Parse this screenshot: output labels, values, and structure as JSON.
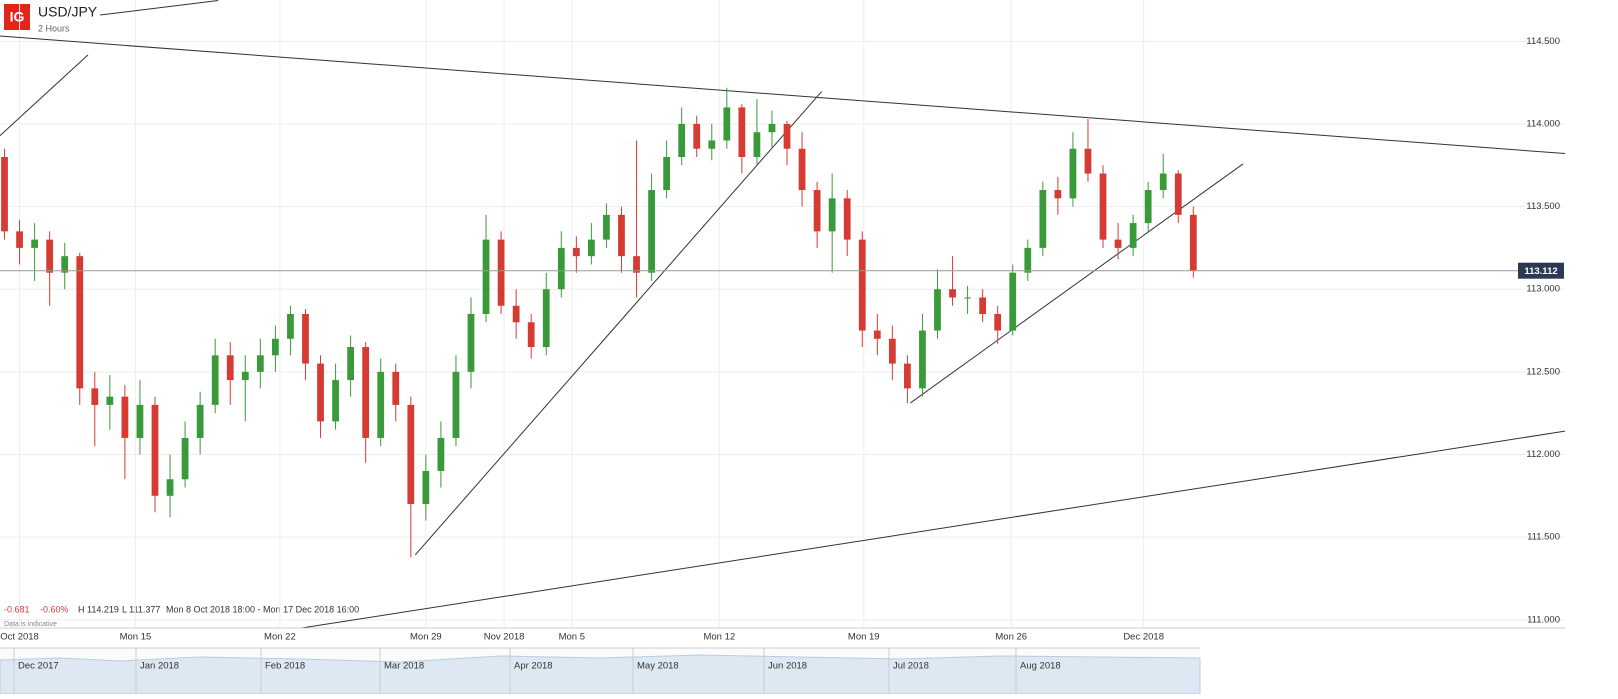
{
  "chart_data": {
    "type": "candlestick",
    "logo": "IG",
    "title": "USD/JPY",
    "subtitle": "2 Hours",
    "info": {
      "change": "-0.681",
      "change_pct": "-0.60%",
      "high": "H 114.219",
      "low": "L 111.377",
      "period": "Mon 8 Oct 2018 18:00 - Mon 17 Dec 2018 16:00",
      "note": "Data is indicative"
    },
    "up_color": "#3a9a3a",
    "down_color": "#d63b33",
    "grid": true,
    "xlim": [
      -0.3,
      103.7
    ],
    "ylim": [
      110.95,
      114.75
    ],
    "yticks": [
      {
        "value": 111.0,
        "label": "111.000"
      },
      {
        "value": 111.5,
        "label": "111.500"
      },
      {
        "value": 112.0,
        "label": "112.000"
      },
      {
        "value": 112.5,
        "label": "112.500"
      },
      {
        "value": 113.0,
        "label": "113.000"
      },
      {
        "value": 113.5,
        "label": "113.500"
      },
      {
        "value": 114.0,
        "label": "114.000"
      },
      {
        "value": 114.5,
        "label": "114.500"
      }
    ],
    "xticks": [
      {
        "value": 1,
        "label": "Oct 2018"
      },
      {
        "value": 8.7,
        "label": "Mon 15"
      },
      {
        "value": 18.3,
        "label": "Mon 22"
      },
      {
        "value": 28,
        "label": "Mon 29"
      },
      {
        "value": 33.2,
        "label": "Nov 2018"
      },
      {
        "value": 37.7,
        "label": "Mon 5"
      },
      {
        "value": 47.5,
        "label": "Mon 12"
      },
      {
        "value": 57.1,
        "label": "Mon 19"
      },
      {
        "value": 66.9,
        "label": "Mon 26"
      },
      {
        "value": 75.7,
        "label": "Dec 2018"
      }
    ],
    "last_price": {
      "value": 113.112,
      "label": "113.112",
      "color": "#2b3a52"
    },
    "ohlc": [
      [
        113.8,
        113.85,
        113.3,
        113.35
      ],
      [
        113.35,
        113.42,
        113.15,
        113.25
      ],
      [
        113.25,
        113.4,
        113.05,
        113.3
      ],
      [
        113.3,
        113.35,
        112.9,
        113.1
      ],
      [
        113.1,
        113.28,
        113.0,
        113.2
      ],
      [
        113.2,
        113.22,
        112.3,
        112.4
      ],
      [
        112.4,
        112.5,
        112.05,
        112.3
      ],
      [
        112.3,
        112.48,
        112.15,
        112.35
      ],
      [
        112.35,
        112.42,
        111.85,
        112.1
      ],
      [
        112.1,
        112.45,
        112.0,
        112.3
      ],
      [
        112.3,
        112.35,
        111.65,
        111.75
      ],
      [
        111.75,
        112.0,
        111.62,
        111.85
      ],
      [
        111.85,
        112.2,
        111.8,
        112.1
      ],
      [
        112.1,
        112.38,
        112.0,
        112.3
      ],
      [
        112.3,
        112.7,
        112.25,
        112.6
      ],
      [
        112.6,
        112.68,
        112.3,
        112.45
      ],
      [
        112.45,
        112.6,
        112.2,
        112.5
      ],
      [
        112.5,
        112.7,
        112.4,
        112.6
      ],
      [
        112.6,
        112.78,
        112.5,
        112.7
      ],
      [
        112.7,
        112.9,
        112.6,
        112.85
      ],
      [
        112.85,
        112.88,
        112.45,
        112.55
      ],
      [
        112.55,
        112.6,
        112.1,
        112.2
      ],
      [
        112.2,
        112.55,
        112.15,
        112.45
      ],
      [
        112.45,
        112.72,
        112.35,
        112.65
      ],
      [
        112.65,
        112.68,
        111.95,
        112.1
      ],
      [
        112.1,
        112.58,
        112.05,
        112.5
      ],
      [
        112.5,
        112.55,
        112.2,
        112.3
      ],
      [
        112.3,
        112.35,
        111.377,
        111.7
      ],
      [
        111.7,
        112.0,
        111.6,
        111.9
      ],
      [
        111.9,
        112.2,
        111.8,
        112.1
      ],
      [
        112.1,
        112.6,
        112.05,
        112.5
      ],
      [
        112.5,
        112.95,
        112.4,
        112.85
      ],
      [
        112.85,
        113.45,
        112.8,
        113.3
      ],
      [
        113.3,
        113.35,
        112.85,
        112.9
      ],
      [
        112.9,
        113.0,
        112.7,
        112.8
      ],
      [
        112.8,
        112.85,
        112.58,
        112.65
      ],
      [
        112.65,
        113.1,
        112.6,
        113.0
      ],
      [
        113.0,
        113.35,
        112.95,
        113.25
      ],
      [
        113.25,
        113.32,
        113.1,
        113.2
      ],
      [
        113.2,
        113.4,
        113.15,
        113.3
      ],
      [
        113.3,
        113.52,
        113.25,
        113.45
      ],
      [
        113.45,
        113.5,
        113.1,
        113.2
      ],
      [
        113.2,
        113.9,
        112.95,
        113.1
      ],
      [
        113.1,
        113.7,
        113.05,
        113.6
      ],
      [
        113.6,
        113.9,
        113.55,
        113.8
      ],
      [
        113.8,
        114.1,
        113.75,
        114.0
      ],
      [
        114.0,
        114.05,
        113.8,
        113.85
      ],
      [
        113.85,
        114.0,
        113.78,
        113.9
      ],
      [
        113.9,
        114.219,
        113.85,
        114.1
      ],
      [
        114.1,
        114.12,
        113.7,
        113.8
      ],
      [
        113.8,
        114.15,
        113.75,
        113.95
      ],
      [
        113.95,
        114.08,
        113.85,
        114.0
      ],
      [
        114.0,
        114.02,
        113.75,
        113.85
      ],
      [
        113.85,
        113.95,
        113.5,
        113.6
      ],
      [
        113.6,
        113.65,
        113.25,
        113.35
      ],
      [
        113.35,
        113.7,
        113.1,
        113.55
      ],
      [
        113.55,
        113.6,
        113.2,
        113.3
      ],
      [
        113.3,
        113.35,
        112.65,
        112.75
      ],
      [
        112.75,
        112.85,
        112.6,
        112.7
      ],
      [
        112.7,
        112.78,
        112.45,
        112.55
      ],
      [
        112.55,
        112.6,
        112.31,
        112.4
      ],
      [
        112.4,
        112.85,
        112.35,
        112.75
      ],
      [
        112.75,
        113.12,
        112.7,
        113.0
      ],
      [
        113.0,
        113.2,
        112.9,
        112.95
      ],
      [
        112.95,
        113.02,
        112.85,
        112.95
      ],
      [
        112.95,
        113.0,
        112.8,
        112.85
      ],
      [
        112.85,
        112.9,
        112.67,
        112.75
      ],
      [
        112.75,
        113.15,
        112.72,
        113.1
      ],
      [
        113.1,
        113.3,
        113.05,
        113.25
      ],
      [
        113.25,
        113.65,
        113.2,
        113.6
      ],
      [
        113.6,
        113.68,
        113.45,
        113.55
      ],
      [
        113.55,
        113.95,
        113.5,
        113.85
      ],
      [
        113.85,
        114.03,
        113.65,
        113.7
      ],
      [
        113.7,
        113.75,
        113.25,
        113.3
      ],
      [
        113.3,
        113.4,
        113.18,
        113.25
      ],
      [
        113.25,
        113.45,
        113.2,
        113.4
      ],
      [
        113.4,
        113.65,
        113.35,
        113.6
      ],
      [
        113.6,
        113.82,
        113.55,
        113.7
      ],
      [
        113.7,
        113.72,
        113.4,
        113.45
      ],
      [
        113.45,
        113.5,
        113.07,
        113.112
      ]
    ],
    "trendlines": [
      {
        "x": [
          -0.3,
          103.7
        ],
        "y": [
          114.532,
          113.821
        ]
      },
      {
        "x": [
          5.35,
          103.7
        ],
        "y": [
          110.746,
          112.141
        ]
      },
      {
        "x": [
          27.3,
          54.3
        ],
        "y": [
          111.393,
          114.196
        ]
      },
      {
        "x": [
          60.2,
          82.3
        ],
        "y": [
          112.312,
          113.758
        ]
      },
      {
        "x": [
          -0.3,
          5.55
        ],
        "y": [
          113.929,
          114.418
        ]
      },
      {
        "x": [
          6.35,
          14.2
        ],
        "y": [
          114.659,
          114.747
        ]
      }
    ],
    "navigator_labels": [
      "Dec 2017",
      "Jan 2018",
      "Feb 2018",
      "Mar 2018",
      "Apr 2018",
      "May 2018",
      "Jun 2018",
      "Jul 2018",
      "Aug 2018"
    ]
  }
}
